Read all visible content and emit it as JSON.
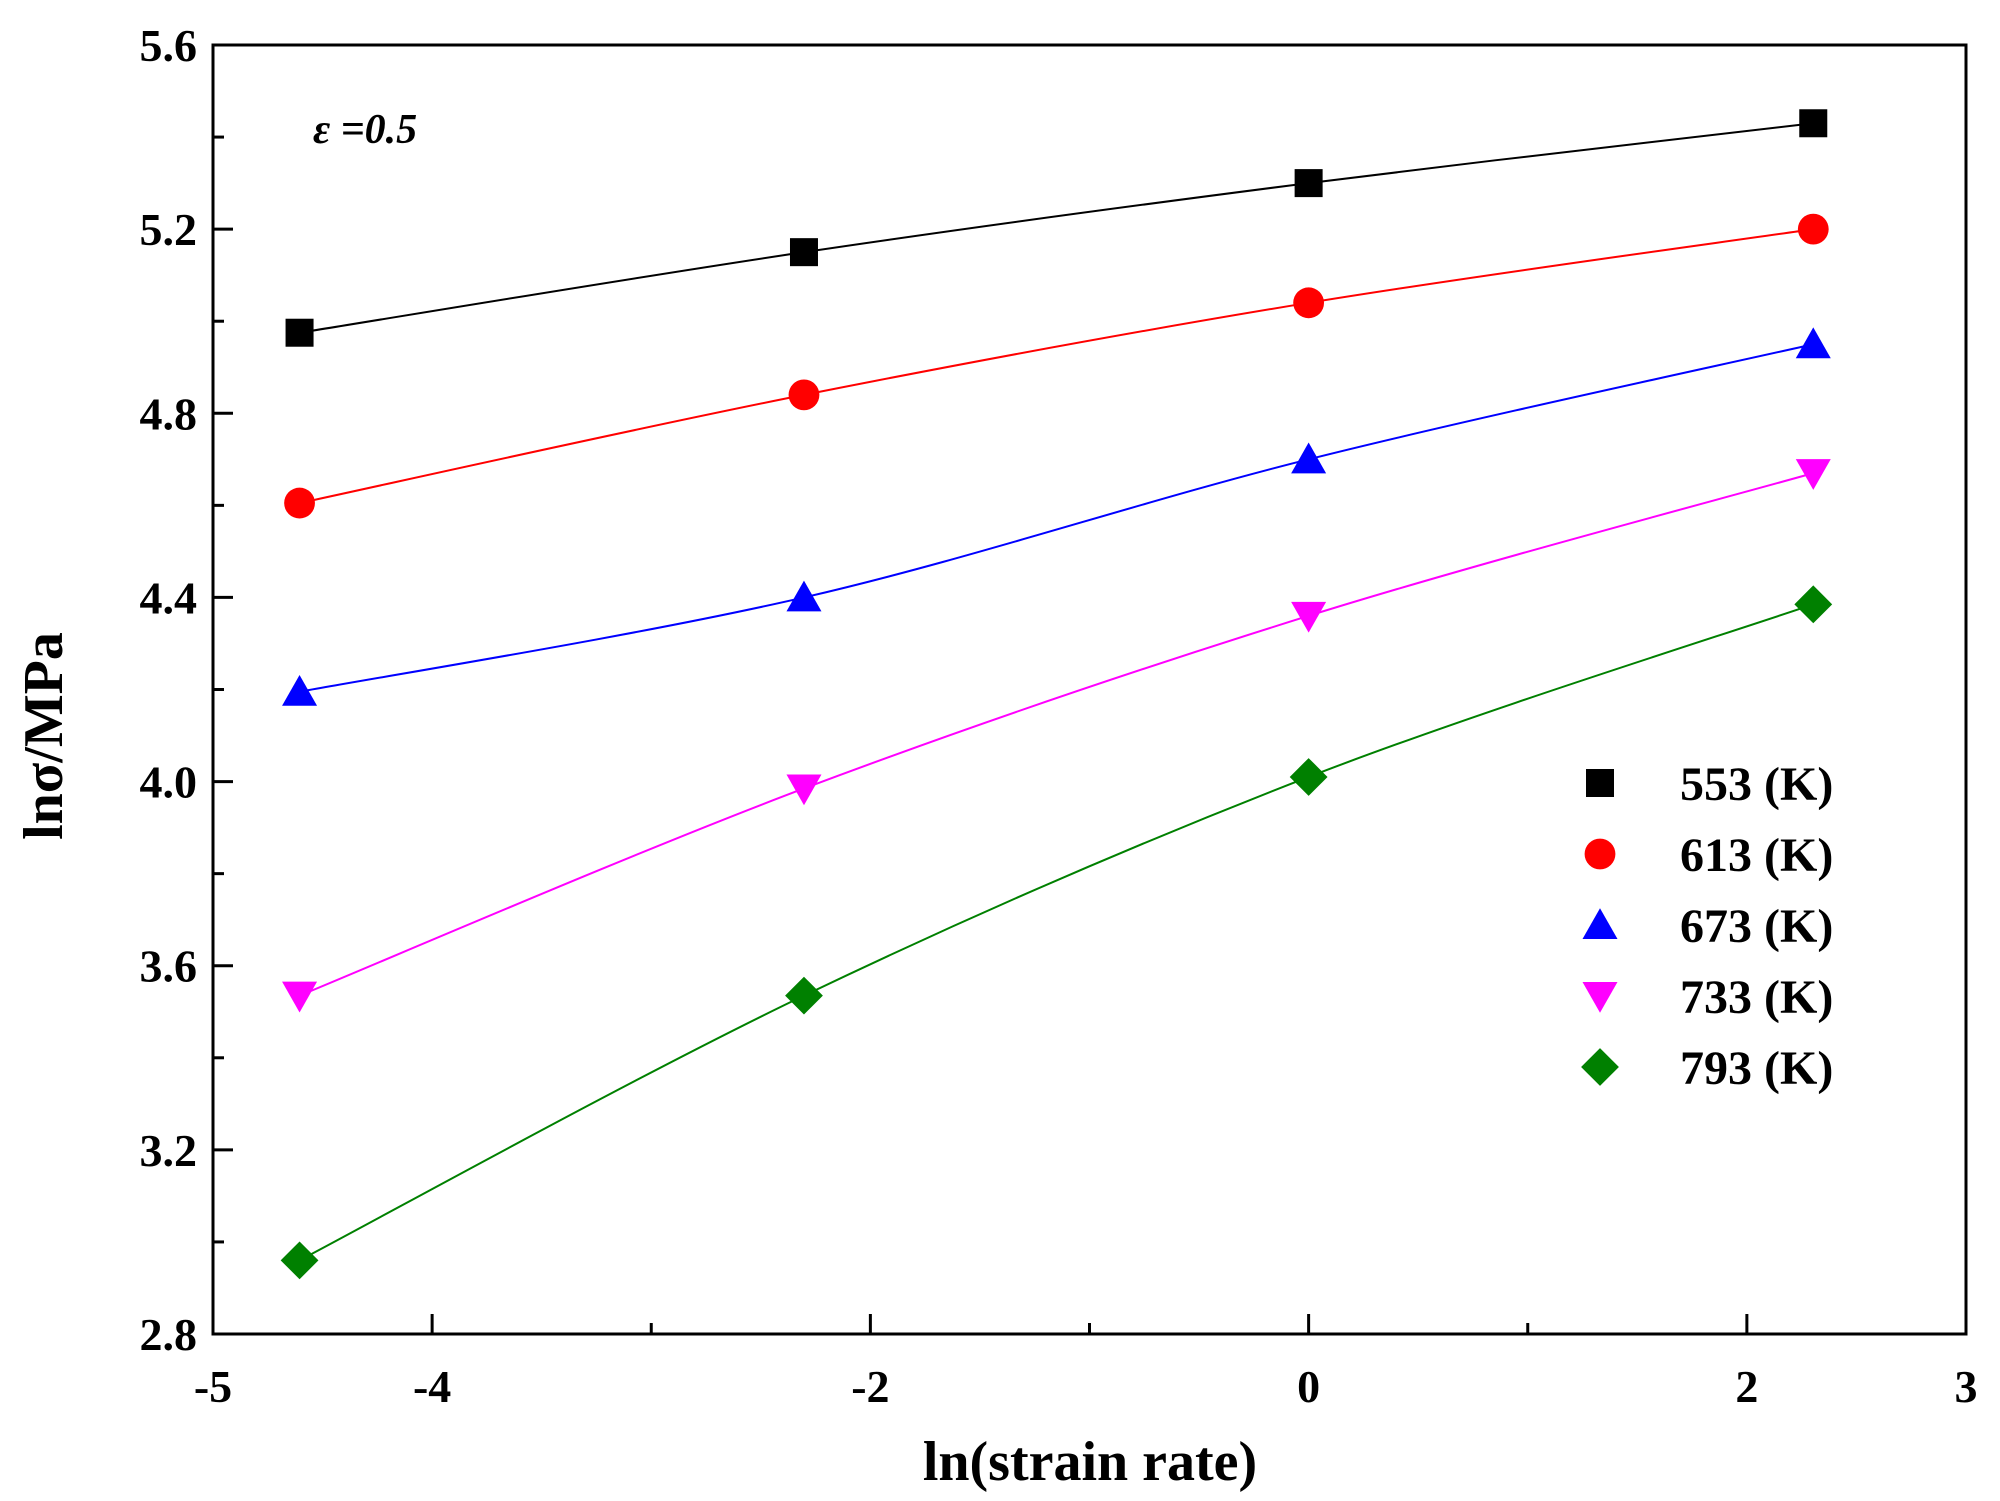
{
  "chart_data": {
    "type": "line",
    "title": "",
    "annotation": "ε =0.5",
    "xlabel": "ln(strain rate)",
    "ylabel": "lnσ/MPa",
    "xlim": [
      -5,
      3
    ],
    "ylim": [
      2.8,
      5.6
    ],
    "xticks": [
      -5,
      -4,
      -2,
      0,
      2,
      3
    ],
    "xtick_labels": [
      "-5",
      "-4",
      "-2",
      "0",
      "2",
      "3"
    ],
    "yticks": [
      2.8,
      3.2,
      3.6,
      4.0,
      4.4,
      4.8,
      5.2,
      5.6
    ],
    "ytick_labels": [
      "2.8",
      "3.2",
      "3.6",
      "4.0",
      "4.4",
      "4.8",
      "5.2",
      "5.6"
    ],
    "grid": false,
    "legend_position": "right",
    "x": [
      -4.605,
      -2.303,
      0,
      2.303
    ],
    "series": [
      {
        "name": "553 (K)",
        "color": "#000000",
        "marker": "square",
        "values": [
          4.975,
          5.15,
          5.3,
          5.43
        ]
      },
      {
        "name": "613 (K)",
        "color": "#ff0000",
        "marker": "circle",
        "values": [
          4.605,
          4.84,
          5.04,
          5.2
        ]
      },
      {
        "name": "673 (K)",
        "color": "#0000ff",
        "marker": "triangle-up",
        "values": [
          4.195,
          4.4,
          4.7,
          4.95
        ]
      },
      {
        "name": "733 (K)",
        "color": "#ff00ff",
        "marker": "triangle-down",
        "values": [
          3.535,
          3.985,
          4.36,
          4.67
        ]
      },
      {
        "name": "793 (K)",
        "color": "#008000",
        "marker": "diamond",
        "values": [
          2.96,
          3.535,
          4.01,
          4.385
        ]
      }
    ]
  }
}
